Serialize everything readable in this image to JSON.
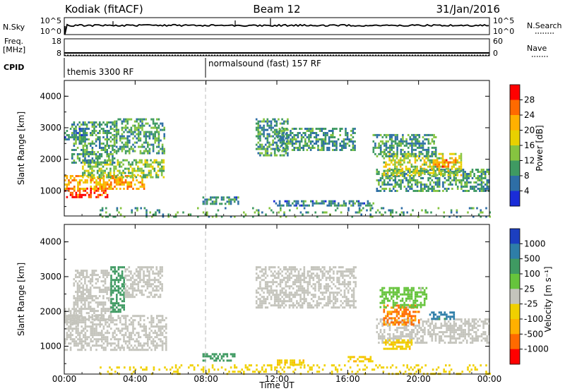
{
  "header": {
    "radar": "Kodiak (fitACF)",
    "beam": "Beam 12",
    "date": "31/Jan/2016"
  },
  "top_panels": {
    "nsky_label": "N.Sky",
    "nsearch_label": "N.Search",
    "nsky_ticks": [
      "10^5",
      "10^0"
    ],
    "nsearch_ticks": [
      "10^5",
      "10^0"
    ],
    "freq_label_1": "Freq.",
    "freq_label_2": "[MHz]",
    "freq_ticks": [
      "18",
      "8"
    ],
    "nave_label": "Nave",
    "nave_ticks": [
      "60",
      "0"
    ],
    "cpid_label": "CPID",
    "cpid_segments": [
      {
        "label": "themis 3300 RF",
        "start_hour": 0
      },
      {
        "label": "normalsound (fast) 157 RF",
        "start_hour": 8
      }
    ]
  },
  "chart_data": [
    {
      "type": "heatmap",
      "name": "power",
      "ylabel": "Slant Range [km]",
      "y_ticks": [
        "1000",
        "2000",
        "3000",
        "4000"
      ],
      "ylim": [
        200,
        4500
      ],
      "xlim": [
        0,
        24
      ],
      "colorbar_label": "Power [dB]",
      "colorbar_ticks": [
        "28",
        "24",
        "20",
        "16",
        "12",
        "8",
        "4"
      ],
      "colorbar_colors": [
        "#ff0000",
        "#ff6a00",
        "#ffb000",
        "#e8d000",
        "#86c440",
        "#3f9a62",
        "#2e6ea6",
        "#1a2cd8"
      ],
      "regions": [
        {
          "t0": 0.0,
          "t1": 2.4,
          "r0": 800,
          "r1": 1100,
          "value": 26
        },
        {
          "t0": 0.0,
          "t1": 4.5,
          "r0": 1050,
          "r1": 1500,
          "value": 20
        },
        {
          "t0": 1.0,
          "t1": 5.6,
          "r0": 1400,
          "r1": 2000,
          "value": 12
        },
        {
          "t0": 0.4,
          "t1": 2.8,
          "r0": 1900,
          "r1": 3200,
          "value": 8
        },
        {
          "t0": 2.8,
          "t1": 5.6,
          "r0": 2200,
          "r1": 3300,
          "value": 8
        },
        {
          "t0": 0.0,
          "t1": 1.2,
          "r0": 2600,
          "r1": 3000,
          "value": 6
        },
        {
          "t0": 10.8,
          "t1": 12.6,
          "r0": 2100,
          "r1": 3300,
          "value": 8
        },
        {
          "t0": 12.0,
          "t1": 16.4,
          "r0": 2300,
          "r1": 3000,
          "value": 7
        },
        {
          "t0": 7.8,
          "t1": 9.8,
          "r0": 560,
          "r1": 820,
          "value": 6
        },
        {
          "t0": 11.8,
          "t1": 17.4,
          "r0": 500,
          "r1": 700,
          "value": 6
        },
        {
          "t0": 17.6,
          "t1": 24.0,
          "r0": 1000,
          "r1": 1700,
          "value": 8
        },
        {
          "t0": 18.0,
          "t1": 22.4,
          "r0": 1500,
          "r1": 2200,
          "value": 14
        },
        {
          "t0": 20.8,
          "t1": 22.2,
          "r0": 1750,
          "r1": 2000,
          "value": 22
        },
        {
          "t0": 17.4,
          "t1": 21.0,
          "r0": 2100,
          "r1": 2800,
          "value": 8
        },
        {
          "t0": 2.0,
          "t1": 24.0,
          "r0": 200,
          "r1": 480,
          "value": 8
        }
      ]
    },
    {
      "type": "heatmap",
      "name": "velocity",
      "ylabel": "Slant Range [km]",
      "y_ticks": [
        "1000",
        "2000",
        "3000",
        "4000"
      ],
      "ylim": [
        200,
        4500
      ],
      "xlim": [
        0,
        24
      ],
      "colorbar_label": "Velocity [m s⁻¹]",
      "colorbar_ticks": [
        "1000",
        "500",
        "100",
        "25",
        "-25",
        "-100",
        "-500",
        "-1000"
      ],
      "colorbar_colors": [
        "#1c3fc0",
        "#2e7ea8",
        "#3f9a62",
        "#66c43c",
        "#c4c4bc",
        "#f0d000",
        "#ffb000",
        "#ff6a00",
        "#ff0000"
      ],
      "regions": [
        {
          "t0": 0.0,
          "t1": 5.8,
          "r0": 900,
          "r1": 1900,
          "value": 0
        },
        {
          "t0": 0.0,
          "t1": 0.8,
          "r0": 1600,
          "r1": 2100,
          "value": 0
        },
        {
          "t0": 0.5,
          "t1": 2.6,
          "r0": 1800,
          "r1": 3200,
          "value": 0
        },
        {
          "t0": 2.6,
          "t1": 3.4,
          "r0": 2000,
          "r1": 3300,
          "value": 300
        },
        {
          "t0": 3.4,
          "t1": 5.5,
          "r0": 2400,
          "r1": 3300,
          "value": 0
        },
        {
          "t0": 10.8,
          "t1": 16.4,
          "r0": 2100,
          "r1": 3300,
          "value": 0
        },
        {
          "t0": 7.8,
          "t1": 9.6,
          "r0": 580,
          "r1": 800,
          "value": 300
        },
        {
          "t0": 12.0,
          "t1": 13.5,
          "r0": 480,
          "r1": 620,
          "value": -80
        },
        {
          "t0": 16.0,
          "t1": 17.4,
          "r0": 560,
          "r1": 720,
          "value": -80
        },
        {
          "t0": 17.6,
          "t1": 24.0,
          "r0": 1100,
          "r1": 1800,
          "value": 0
        },
        {
          "t0": 18.0,
          "t1": 20.0,
          "r0": 1600,
          "r1": 2200,
          "value": -600
        },
        {
          "t0": 20.6,
          "t1": 22.0,
          "r0": 1800,
          "r1": 2000,
          "value": 700
        },
        {
          "t0": 17.8,
          "t1": 20.4,
          "r0": 2100,
          "r1": 2700,
          "value": 40
        },
        {
          "t0": 18.0,
          "t1": 19.6,
          "r0": 900,
          "r1": 1200,
          "value": -80
        },
        {
          "t0": 2.0,
          "t1": 24.0,
          "r0": 200,
          "r1": 480,
          "value": -60
        }
      ]
    }
  ],
  "x_axis": {
    "ticks": [
      "00:00",
      "04:00",
      "08:00",
      "12:00",
      "16:00",
      "20:00",
      "00:00"
    ],
    "label": "Time UT"
  }
}
